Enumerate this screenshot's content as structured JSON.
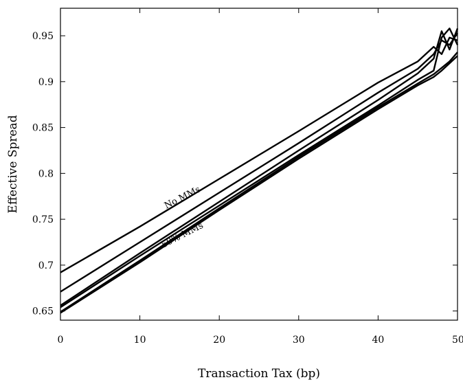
{
  "chart_data": {
    "type": "line",
    "title": "",
    "xlabel": "Transaction Tax (bp)",
    "ylabel": "Effective Spread",
    "xlim": [
      0,
      50
    ],
    "ylim": [
      0.64,
      0.98
    ],
    "xticks": [
      0,
      10,
      20,
      30,
      40,
      50
    ],
    "xtick_labels": [
      "0",
      "10",
      "20",
      "30",
      "40",
      "50"
    ],
    "yticks": [
      0.65,
      0.7,
      0.75,
      0.8,
      0.85,
      0.9,
      0.95
    ],
    "ytick_labels": [
      "0.65",
      "0.7",
      "0.75",
      "0.8",
      "0.85",
      "0.9",
      "0.95"
    ],
    "grid": false,
    "line_color": "#000000",
    "x": [
      0,
      10,
      20,
      30,
      40,
      45,
      47,
      48,
      49,
      50
    ],
    "series": [
      {
        "values": [
          0.692,
          0.742,
          0.794,
          0.846,
          0.899,
          0.922,
          0.938,
          0.93,
          0.948,
          0.945
        ]
      },
      {
        "values": [
          0.671,
          0.725,
          0.779,
          0.833,
          0.888,
          0.914,
          0.93,
          0.945,
          0.94,
          0.953
        ]
      },
      {
        "values": [
          0.656,
          0.713,
          0.769,
          0.825,
          0.88,
          0.909,
          0.925,
          0.955,
          0.935,
          0.958
        ]
      },
      {
        "values": [
          0.654,
          0.71,
          0.765,
          0.82,
          0.874,
          0.902,
          0.912,
          0.948,
          0.958,
          0.94
        ]
      },
      {
        "values": [
          0.649,
          0.705,
          0.762,
          0.818,
          0.872,
          0.898,
          0.908,
          0.915,
          0.922,
          0.932
        ]
      },
      {
        "values": [
          0.648,
          0.703,
          0.76,
          0.816,
          0.87,
          0.896,
          0.905,
          0.912,
          0.92,
          0.928
        ]
      }
    ],
    "annotations": [
      {
        "text": "No MMs",
        "x": 15.5,
        "y": 0.771,
        "angle": -27
      },
      {
        "text": "50% MMs",
        "x": 15.5,
        "y": 0.73,
        "angle": -27
      }
    ]
  }
}
